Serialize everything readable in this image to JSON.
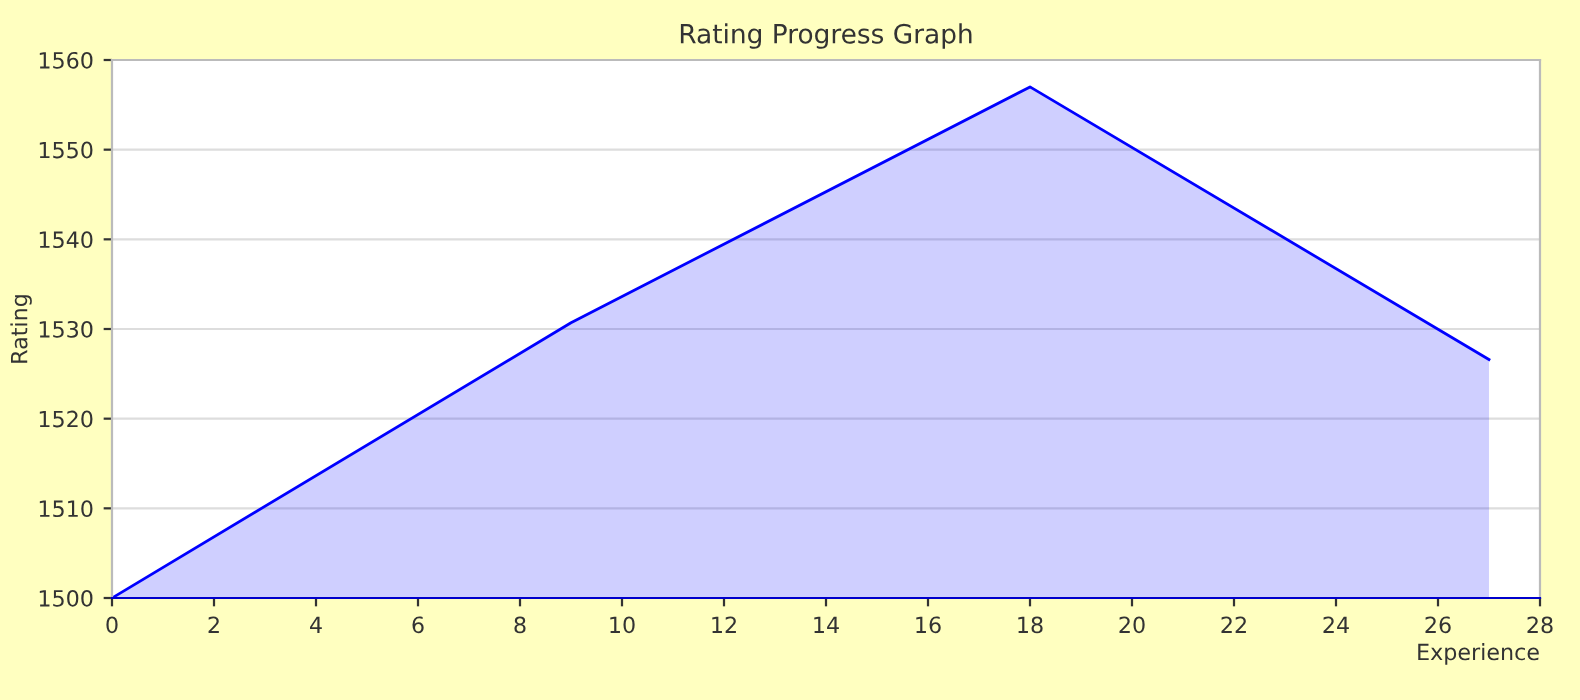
{
  "chart_data": {
    "type": "area",
    "title": "Rating Progress Graph",
    "xlabel": "Experience",
    "ylabel": "Rating",
    "x": [
      0,
      9,
      18,
      27
    ],
    "series": [
      {
        "color": "#0000ff",
        "values": [
          1500,
          1530.7,
          1557,
          1526.6
        ]
      }
    ],
    "xlim": [
      0,
      28
    ],
    "xticks": [
      0,
      2,
      4,
      6,
      8,
      10,
      12,
      14,
      16,
      18,
      20,
      22,
      24,
      26,
      28
    ],
    "ylim": [
      1500,
      1560
    ],
    "yticks": [
      1500,
      1510,
      1520,
      1530,
      1540,
      1550,
      1560
    ],
    "grid": "y",
    "legend": false
  }
}
